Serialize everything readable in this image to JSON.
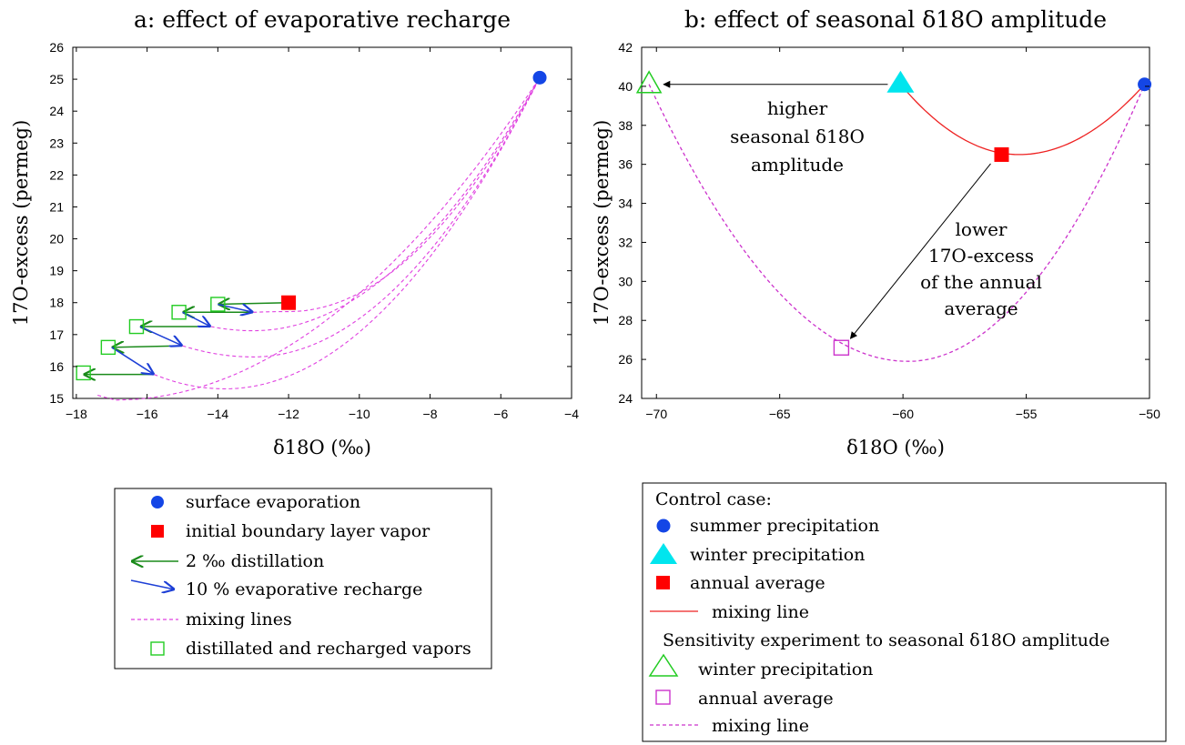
{
  "chart_data": [
    {
      "id": "a",
      "type": "line",
      "title": "a: effect of evaporative recharge",
      "xlabel": "δ18O (‰)",
      "ylabel": "17O-excess (permeg)",
      "xlim": [
        -18,
        -4
      ],
      "ylim": [
        15,
        26
      ],
      "xticks": [
        -18,
        -16,
        -14,
        -12,
        -10,
        -8,
        -6,
        -4
      ],
      "yticks": [
        15,
        16,
        17,
        18,
        19,
        20,
        21,
        22,
        23,
        24,
        25,
        26
      ],
      "surface_evaporation": {
        "x": -4.9,
        "y": 25.05
      },
      "initial_boundary_layer_vapor": {
        "x": -12.0,
        "y": 18.0
      },
      "distillation_arrows": [
        {
          "from": [
            -12.0,
            18.0
          ],
          "to": [
            -14.0,
            17.95
          ]
        },
        {
          "from": [
            -13.0,
            17.7
          ],
          "to": [
            -15.0,
            17.7
          ]
        },
        {
          "from": [
            -14.2,
            17.25
          ],
          "to": [
            -16.2,
            17.25
          ]
        },
        {
          "from": [
            -15.0,
            16.65
          ],
          "to": [
            -17.0,
            16.6
          ]
        },
        {
          "from": [
            -15.8,
            15.75
          ],
          "to": [
            -17.8,
            15.75
          ]
        }
      ],
      "recharge_arrows": [
        {
          "from": [
            -14.0,
            17.95
          ],
          "to": [
            -13.0,
            17.7
          ]
        },
        {
          "from": [
            -15.0,
            17.7
          ],
          "to": [
            -14.2,
            17.25
          ]
        },
        {
          "from": [
            -16.2,
            17.25
          ],
          "to": [
            -15.0,
            16.65
          ]
        },
        {
          "from": [
            -17.0,
            16.6
          ],
          "to": [
            -15.8,
            15.75
          ]
        }
      ],
      "distilled_recharged_vapors": [
        {
          "x": -14.0,
          "y": 17.95
        },
        {
          "x": -15.1,
          "y": 17.7
        },
        {
          "x": -16.3,
          "y": 17.25
        },
        {
          "x": -17.1,
          "y": 16.6
        },
        {
          "x": -17.8,
          "y": 15.8
        }
      ],
      "mixing_lines": [
        {
          "start": [
            -13.0,
            17.7
          ],
          "min": [
            -12.0,
            17.72
          ]
        },
        {
          "start": [
            -14.2,
            17.25
          ],
          "min": [
            -13.0,
            17.12
          ]
        },
        {
          "start": [
            -15.0,
            16.65
          ],
          "min": [
            -13.0,
            16.3
          ]
        },
        {
          "start": [
            -15.8,
            15.75
          ],
          "min": [
            -13.8,
            15.3
          ]
        },
        {
          "start": [
            -17.1,
            15.05
          ],
          "min": [
            -17.1,
            15.05
          ]
        }
      ],
      "legend": {
        "entries": [
          {
            "label": "surface evaporation"
          },
          {
            "label": "initial boundary layer vapor"
          },
          {
            "label": "2 ‰ distillation"
          },
          {
            "label": "10 % evaporative recharge"
          },
          {
            "label": "mixing lines"
          },
          {
            "label": "distillated and recharged vapors"
          }
        ]
      }
    },
    {
      "id": "b",
      "type": "line",
      "title": "b: effect of seasonal δ18O amplitude",
      "xlabel": "δ18O (‰)",
      "ylabel": "17O-excess (permeg)",
      "xlim": [
        -70.5,
        -50
      ],
      "ylim": [
        24,
        42
      ],
      "xticks": [
        -70,
        -65,
        -60,
        -55,
        -50
      ],
      "yticks": [
        24,
        26,
        28,
        30,
        32,
        34,
        36,
        38,
        40,
        42
      ],
      "control_summer_precipitation": {
        "x": -50.2,
        "y": 40.1
      },
      "control_winter_precipitation": {
        "x": -60.1,
        "y": 40.1
      },
      "control_annual_average": {
        "x": -56.0,
        "y": 36.5
      },
      "control_mixing_line_min": {
        "x": -55.3,
        "y": 36.5
      },
      "sensitivity_winter_precipitation": {
        "x": -70.3,
        "y": 40.1
      },
      "sensitivity_annual_average": {
        "x": -62.5,
        "y": 26.6
      },
      "sensitivity_mixing_line_min": {
        "x": -59.8,
        "y": 25.9
      },
      "annotations": {
        "higher": [
          "higher",
          "seasonal δ18O",
          "amplitude"
        ],
        "lower": [
          "lower",
          "17O-excess",
          "of the annual",
          "average"
        ]
      },
      "legend": {
        "control_header": "Control case:",
        "sensitivity_header": "Sensitivity experiment to seasonal δ18O amplitude",
        "entries": [
          {
            "label": "summer precipitation"
          },
          {
            "label": "winter precipitation"
          },
          {
            "label": "annual average"
          },
          {
            "label": "mixing line"
          },
          {
            "label": "winter precipitation"
          },
          {
            "label": "annual average"
          },
          {
            "label": "mixing line"
          }
        ]
      }
    }
  ],
  "colors": {
    "surface_evaporation": "#1446e6",
    "initial_vapor": "#ff0000",
    "distillation": "#1a8a1a",
    "recharge": "#1d3fd6",
    "mixing_dashed": "#e040e0",
    "recharged_vapors": "#22cc22",
    "summer": "#1446e6",
    "winter": "#00e5ee",
    "annual": "#ff0000",
    "control_mixing": "#ee2222",
    "sens_winter": "#22cc22",
    "sens_annual": "#cc33cc",
    "sens_mixing": "#cc33cc"
  }
}
